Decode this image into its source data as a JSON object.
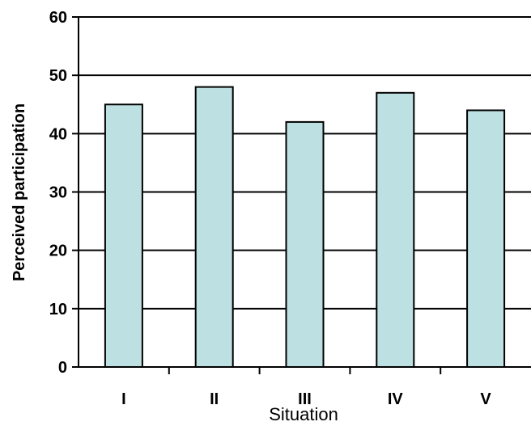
{
  "chart_data": {
    "type": "bar",
    "categories": [
      "I",
      "II",
      "III",
      "IV",
      "V"
    ],
    "values": [
      45,
      48,
      42,
      47,
      44
    ],
    "title": "",
    "xlabel": "Situation",
    "ylabel": "Perceived participation",
    "ylim": [
      0,
      60
    ],
    "yticks": [
      0,
      10,
      20,
      30,
      40,
      50,
      60
    ],
    "grid": true,
    "legend": "none",
    "colors": {
      "bar_fill": "#bde0e2",
      "bar_stroke": "#000000",
      "grid": "#000000"
    }
  }
}
